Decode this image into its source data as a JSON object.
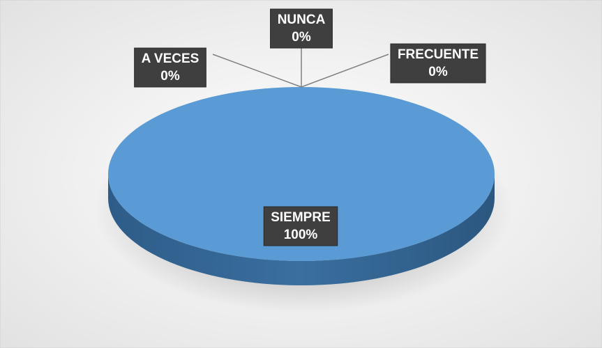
{
  "chart_data": {
    "type": "pie",
    "categories": [
      "SIEMPRE",
      "A VECES",
      "NUNCA",
      "FRECUENTE"
    ],
    "values": [
      100,
      0,
      0,
      0
    ],
    "value_labels": [
      "100%",
      "0%",
      "0%",
      "0%"
    ],
    "color": "#5b9bd5"
  }
}
